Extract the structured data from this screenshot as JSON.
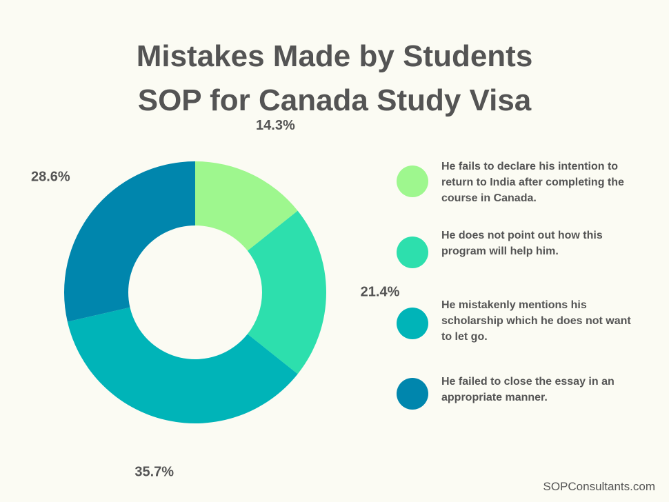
{
  "title": {
    "line1": "Mistakes Made by Students",
    "line2": "SOP for Canada Study Visa"
  },
  "chart_data": {
    "type": "pie",
    "variant": "donut",
    "title": "Mistakes Made by Students SOP for Canada Study Visa",
    "series": [
      {
        "name": "He fails to declare his intention to return to India after completing the course in Canada.",
        "value": 14.3,
        "label": "14.3%",
        "color": "#9ef78e"
      },
      {
        "name": "He does not point out how this program will help him.",
        "value": 21.4,
        "label": "21.4%",
        "color": "#2ddfad"
      },
      {
        "name": "He mistakenly mentions his scholarship which he does not want to let go.",
        "value": 35.7,
        "label": "35.7%",
        "color": "#00b4b8"
      },
      {
        "name": "He failed to close the essay in an appropriate manner.",
        "value": 28.6,
        "label": "28.6%",
        "color": "#0086ad"
      }
    ],
    "legend_position": "right",
    "grid": false
  },
  "footer": {
    "source": "SOPConsultants.com"
  }
}
